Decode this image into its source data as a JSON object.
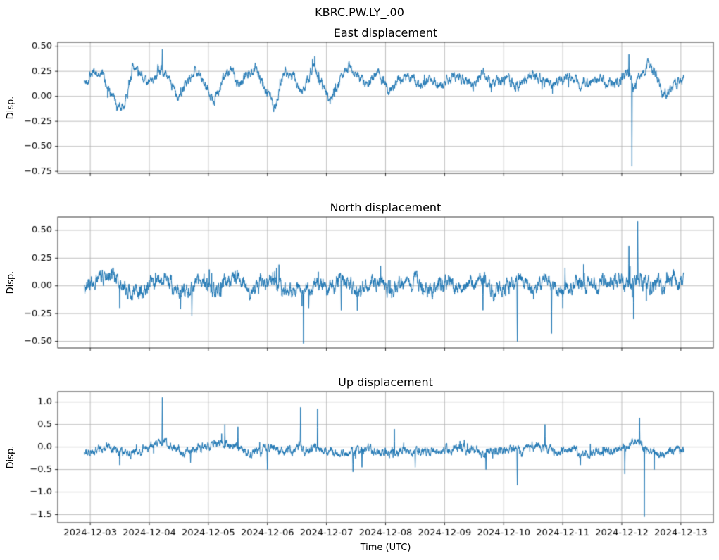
{
  "figure": {
    "suptitle": "KBRC.PW.LY_.00",
    "xlabel": "Time (UTC)",
    "background_color": "#ffffff",
    "grid_color": "#b0b0b0",
    "spine_color": "#000000",
    "tick_label_color": "#000000",
    "line_color": "#1f77b4"
  },
  "chart_data": {
    "type": "line",
    "suptitle": "KBRC.PW.LY_.00",
    "xlabel": "Time (UTC)",
    "legend": "none",
    "grid": true,
    "x_axis": {
      "unit": "days since 2024-12-03 00:00 UTC",
      "xlim": [
        -0.55,
        10.55
      ],
      "data_range": [
        -0.1,
        10.05
      ],
      "tick_positions": [
        0,
        1,
        2,
        3,
        4,
        5,
        6,
        7,
        8,
        9,
        10
      ],
      "tick_labels": [
        "2024-12-03",
        "2024-12-04",
        "2024-12-05",
        "2024-12-06",
        "2024-12-07",
        "2024-12-08",
        "2024-12-09",
        "2024-12-10",
        "2024-12-11",
        "2024-12-12",
        "2024-12-13"
      ]
    },
    "subplots": [
      {
        "title": "East displacement",
        "ylabel": "Disp.",
        "ylim": [
          -0.77,
          0.54
        ],
        "ytick_values": [
          0.5,
          0.25,
          0,
          -0.25,
          -0.5,
          -0.75
        ],
        "ytick_labels": [
          "0.50",
          "0.25",
          "0.00",
          "−0.25",
          "−0.50",
          "−0.75"
        ],
        "series": {
          "name": "East",
          "color": "#1f77b4",
          "noise_amp": 0.03,
          "seed": 42,
          "trend_anchors": [
            [
              -0.1,
              0.13
            ],
            [
              0.05,
              0.24
            ],
            [
              0.2,
              0.22
            ],
            [
              0.32,
              0.05
            ],
            [
              0.45,
              -0.12
            ],
            [
              0.58,
              -0.08
            ],
            [
              0.72,
              0.28
            ],
            [
              0.85,
              0.22
            ],
            [
              1.0,
              0.12
            ],
            [
              1.15,
              0.28
            ],
            [
              1.3,
              0.22
            ],
            [
              1.48,
              -0.03
            ],
            [
              1.62,
              0.1
            ],
            [
              1.78,
              0.28
            ],
            [
              1.95,
              0.12
            ],
            [
              2.08,
              -0.06
            ],
            [
              2.25,
              0.18
            ],
            [
              2.38,
              0.3
            ],
            [
              2.52,
              0.08
            ],
            [
              2.68,
              0.25
            ],
            [
              2.82,
              0.28
            ],
            [
              3.0,
              0.02
            ],
            [
              3.12,
              -0.1
            ],
            [
              3.3,
              0.24
            ],
            [
              3.45,
              0.2
            ],
            [
              3.58,
              0.02
            ],
            [
              3.78,
              0.3
            ],
            [
              3.95,
              0.1
            ],
            [
              4.06,
              -0.06
            ],
            [
              4.22,
              0.15
            ],
            [
              4.35,
              0.3
            ],
            [
              4.52,
              0.2
            ],
            [
              4.7,
              0.12
            ],
            [
              4.88,
              0.24
            ],
            [
              5.05,
              0.04
            ],
            [
              5.22,
              0.16
            ],
            [
              5.4,
              0.2
            ],
            [
              5.58,
              0.08
            ],
            [
              5.75,
              0.18
            ],
            [
              5.95,
              0.1
            ],
            [
              6.12,
              0.2
            ],
            [
              6.3,
              0.16
            ],
            [
              6.48,
              0.1
            ],
            [
              6.65,
              0.22
            ],
            [
              6.85,
              0.12
            ],
            [
              7.05,
              0.18
            ],
            [
              7.25,
              0.1
            ],
            [
              7.45,
              0.2
            ],
            [
              7.65,
              0.15
            ],
            [
              7.85,
              0.12
            ],
            [
              8.05,
              0.2
            ],
            [
              8.25,
              0.15
            ],
            [
              8.45,
              0.12
            ],
            [
              8.65,
              0.18
            ],
            [
              8.85,
              0.1
            ],
            [
              9.0,
              0.18
            ],
            [
              9.1,
              0.28
            ],
            [
              9.2,
              0.08
            ],
            [
              9.32,
              0.2
            ],
            [
              9.45,
              0.32
            ],
            [
              9.58,
              0.22
            ],
            [
              9.7,
              0.02
            ],
            [
              9.85,
              0.1
            ],
            [
              10.05,
              0.16
            ]
          ],
          "spikes": [
            [
              1.22,
              0.47
            ],
            [
              3.8,
              0.4
            ],
            [
              9.12,
              0.42
            ],
            [
              9.17,
              -0.7
            ]
          ]
        }
      },
      {
        "title": "North displacement",
        "ylabel": "Disp.",
        "ylim": [
          -0.56,
          0.62
        ],
        "ytick_values": [
          0.5,
          0.25,
          0,
          -0.25,
          -0.5
        ],
        "ytick_labels": [
          "0.50",
          "0.25",
          "0.00",
          "−0.25",
          "−0.50"
        ],
        "series": {
          "name": "North",
          "color": "#1f77b4",
          "noise_amp": 0.04,
          "seed": 43,
          "trend_anchors": [
            [
              -0.1,
              -0.03
            ],
            [
              0.1,
              0.02
            ],
            [
              0.3,
              0.1
            ],
            [
              0.5,
              0.04
            ],
            [
              0.7,
              -0.08
            ],
            [
              0.9,
              0.0
            ],
            [
              1.1,
              0.04
            ],
            [
              1.3,
              0.08
            ],
            [
              1.5,
              -0.05
            ],
            [
              1.7,
              -0.02
            ],
            [
              1.9,
              0.05
            ],
            [
              2.1,
              -0.06
            ],
            [
              2.3,
              0.03
            ],
            [
              2.5,
              0.07
            ],
            [
              2.7,
              -0.04
            ],
            [
              2.9,
              0.02
            ],
            [
              3.1,
              0.05
            ],
            [
              3.3,
              -0.05
            ],
            [
              3.5,
              0.0
            ],
            [
              3.7,
              -0.06
            ],
            [
              3.9,
              0.04
            ],
            [
              4.1,
              -0.02
            ],
            [
              4.3,
              0.04
            ],
            [
              4.5,
              -0.06
            ],
            [
              4.7,
              0.0
            ],
            [
              4.9,
              0.05
            ],
            [
              5.1,
              -0.05
            ],
            [
              5.3,
              0.02
            ],
            [
              5.5,
              0.06
            ],
            [
              5.7,
              -0.04
            ],
            [
              5.9,
              0.0
            ],
            [
              6.1,
              0.05
            ],
            [
              6.3,
              -0.06
            ],
            [
              6.5,
              0.02
            ],
            [
              6.7,
              0.04
            ],
            [
              6.9,
              -0.05
            ],
            [
              7.1,
              0.0
            ],
            [
              7.3,
              0.06
            ],
            [
              7.5,
              -0.03
            ],
            [
              7.7,
              0.02
            ],
            [
              7.9,
              -0.05
            ],
            [
              8.1,
              0.0
            ],
            [
              8.3,
              0.04
            ],
            [
              8.5,
              -0.03
            ],
            [
              8.7,
              0.02
            ],
            [
              8.9,
              0.05
            ],
            [
              9.1,
              0.0
            ],
            [
              9.3,
              0.04
            ],
            [
              9.5,
              -0.02
            ],
            [
              9.7,
              0.03
            ],
            [
              9.9,
              0.05
            ],
            [
              10.05,
              0.05
            ]
          ],
          "spikes": [
            [
              0.5,
              -0.2
            ],
            [
              1.72,
              -0.27
            ],
            [
              3.61,
              -0.52
            ],
            [
              3.7,
              -0.2
            ],
            [
              4.25,
              -0.22
            ],
            [
              6.65,
              -0.22
            ],
            [
              7.23,
              -0.5
            ],
            [
              7.81,
              -0.43
            ],
            [
              8.0,
              -0.2
            ],
            [
              9.12,
              0.36
            ],
            [
              9.2,
              -0.3
            ],
            [
              9.27,
              0.58
            ]
          ]
        }
      },
      {
        "title": "Up displacement",
        "ylabel": "Disp.",
        "ylim": [
          -1.68,
          1.23
        ],
        "ytick_values": [
          1.0,
          0.5,
          0,
          -0.5,
          -1.0,
          -1.5
        ],
        "ytick_labels": [
          "1.0",
          "0.5",
          "0.0",
          "−0.5",
          "−1.0",
          "−1.5"
        ],
        "series": {
          "name": "Up",
          "color": "#1f77b4",
          "noise_amp": 0.06,
          "seed": 44,
          "trend_anchors": [
            [
              -0.1,
              -0.15
            ],
            [
              0.1,
              -0.05
            ],
            [
              0.3,
              -0.02
            ],
            [
              0.5,
              -0.16
            ],
            [
              0.7,
              -0.12
            ],
            [
              0.9,
              -0.04
            ],
            [
              1.1,
              0.05
            ],
            [
              1.25,
              0.12
            ],
            [
              1.45,
              -0.05
            ],
            [
              1.65,
              -0.1
            ],
            [
              1.85,
              -0.02
            ],
            [
              2.05,
              0.06
            ],
            [
              2.3,
              0.1
            ],
            [
              2.5,
              -0.04
            ],
            [
              2.7,
              -0.12
            ],
            [
              2.9,
              -0.05
            ],
            [
              3.1,
              0.0
            ],
            [
              3.3,
              -0.08
            ],
            [
              3.5,
              0.0
            ],
            [
              3.7,
              -0.08
            ],
            [
              3.9,
              -0.04
            ],
            [
              4.1,
              -0.12
            ],
            [
              4.3,
              -0.18
            ],
            [
              4.5,
              -0.1
            ],
            [
              4.7,
              -0.06
            ],
            [
              4.9,
              -0.14
            ],
            [
              5.1,
              -0.1
            ],
            [
              5.3,
              -0.04
            ],
            [
              5.5,
              -0.12
            ],
            [
              5.7,
              -0.08
            ],
            [
              5.9,
              -0.14
            ],
            [
              6.1,
              -0.05
            ],
            [
              6.3,
              0.0
            ],
            [
              6.5,
              -0.1
            ],
            [
              6.7,
              -0.14
            ],
            [
              6.9,
              -0.08
            ],
            [
              7.1,
              -0.04
            ],
            [
              7.3,
              -0.12
            ],
            [
              7.5,
              0.04
            ],
            [
              7.7,
              -0.02
            ],
            [
              7.9,
              -0.1
            ],
            [
              8.1,
              -0.06
            ],
            [
              8.3,
              -0.12
            ],
            [
              8.5,
              -0.15
            ],
            [
              8.7,
              -0.1
            ],
            [
              8.9,
              -0.06
            ],
            [
              9.1,
              0.0
            ],
            [
              9.25,
              0.15
            ],
            [
              9.4,
              -0.05
            ],
            [
              9.55,
              -0.12
            ],
            [
              9.7,
              -0.15
            ],
            [
              9.9,
              -0.1
            ],
            [
              10.05,
              -0.12
            ]
          ],
          "spikes": [
            [
              0.5,
              -0.4
            ],
            [
              1.22,
              1.1
            ],
            [
              1.7,
              -0.35
            ],
            [
              2.28,
              0.5
            ],
            [
              2.5,
              0.45
            ],
            [
              3.0,
              -0.5
            ],
            [
              3.56,
              0.88
            ],
            [
              3.85,
              0.85
            ],
            [
              4.45,
              -0.55
            ],
            [
              4.6,
              -0.45
            ],
            [
              5.15,
              0.4
            ],
            [
              5.5,
              -0.45
            ],
            [
              6.7,
              -0.5
            ],
            [
              7.23,
              -0.85
            ],
            [
              7.7,
              0.5
            ],
            [
              8.3,
              -0.4
            ],
            [
              9.05,
              -0.6
            ],
            [
              9.3,
              0.65
            ],
            [
              9.38,
              -1.55
            ],
            [
              9.55,
              -0.5
            ]
          ]
        }
      }
    ]
  }
}
